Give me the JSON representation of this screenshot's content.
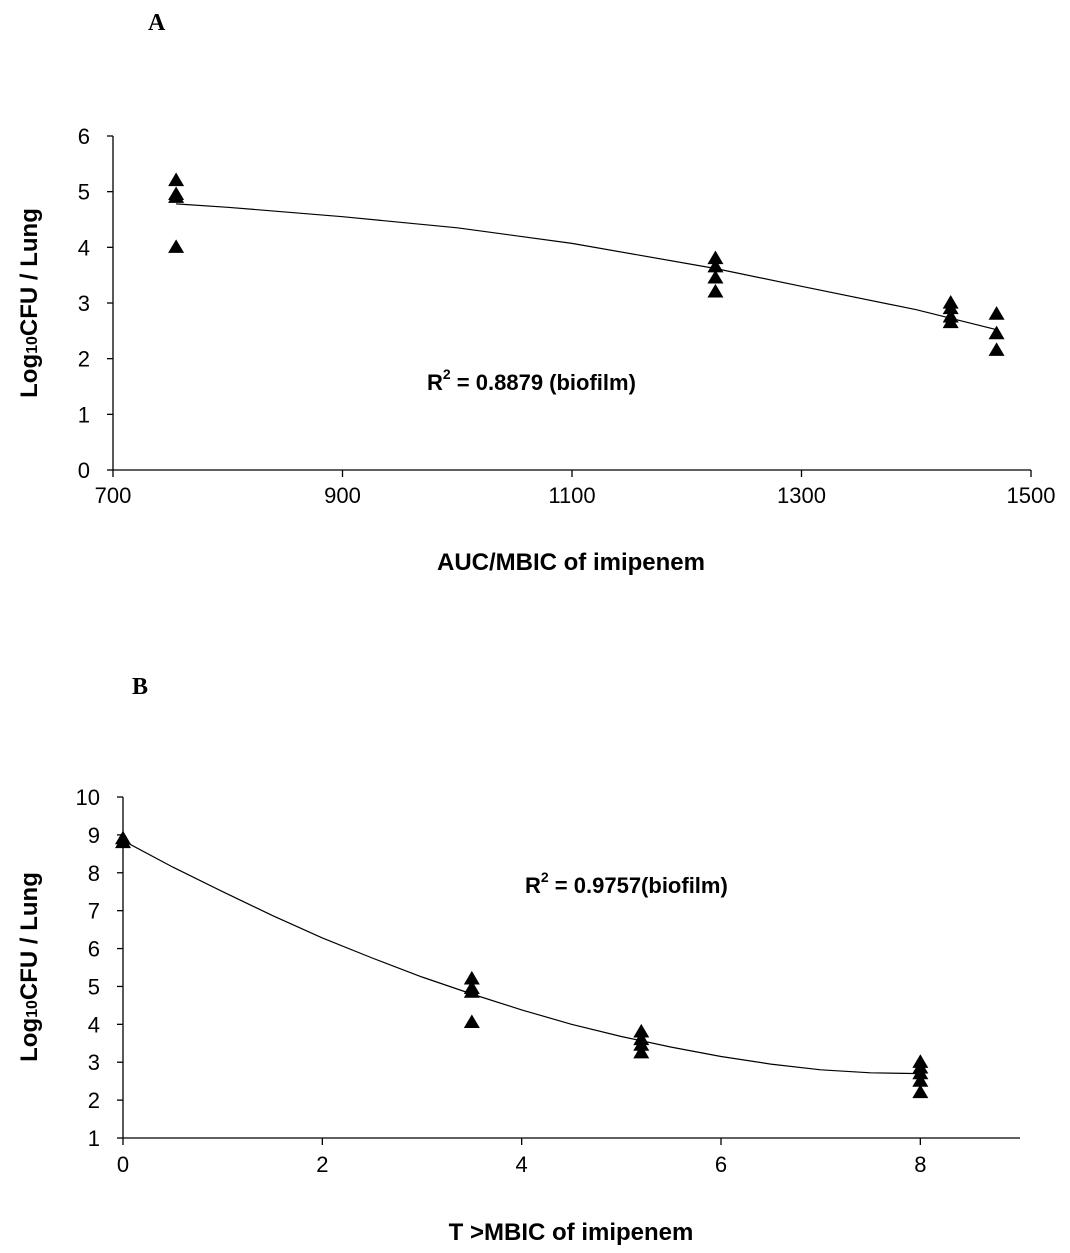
{
  "chart_data": [
    {
      "type": "scatter",
      "panel": "A",
      "xlabel": "AUC/MBIC of imipenem",
      "ylabel_main": "Log",
      "ylabel_sub": "10",
      "ylabel_rest": "CFU / Lung",
      "xlim": [
        700,
        1500
      ],
      "ylim": [
        0,
        6
      ],
      "xticks": [
        700,
        900,
        1100,
        1300,
        1500
      ],
      "yticks": [
        0,
        1,
        2,
        3,
        4,
        5,
        6
      ],
      "annotation_prefix": "R",
      "annotation_sup": "2",
      "annotation_rest": " = 0.8879 (biofilm)",
      "marker": "triangle",
      "points": [
        {
          "x": 755,
          "y": 5.2
        },
        {
          "x": 755,
          "y": 4.95
        },
        {
          "x": 755,
          "y": 4.9
        },
        {
          "x": 755,
          "y": 4.0
        },
        {
          "x": 1225,
          "y": 3.8
        },
        {
          "x": 1225,
          "y": 3.65
        },
        {
          "x": 1225,
          "y": 3.45
        },
        {
          "x": 1225,
          "y": 3.2
        },
        {
          "x": 1430,
          "y": 3.0
        },
        {
          "x": 1430,
          "y": 2.9
        },
        {
          "x": 1430,
          "y": 2.75
        },
        {
          "x": 1430,
          "y": 2.65
        },
        {
          "x": 1470,
          "y": 2.8
        },
        {
          "x": 1470,
          "y": 2.45
        },
        {
          "x": 1470,
          "y": 2.15
        }
      ],
      "trendline": [
        {
          "x": 755,
          "y": 4.78
        },
        {
          "x": 800,
          "y": 4.72
        },
        {
          "x": 900,
          "y": 4.55
        },
        {
          "x": 1000,
          "y": 4.35
        },
        {
          "x": 1100,
          "y": 4.07
        },
        {
          "x": 1225,
          "y": 3.62
        },
        {
          "x": 1300,
          "y": 3.3
        },
        {
          "x": 1400,
          "y": 2.88
        },
        {
          "x": 1470,
          "y": 2.52
        }
      ]
    },
    {
      "type": "scatter",
      "panel": "B",
      "xlabel": "T >MBIC of imipenem",
      "ylabel_main": "Log",
      "ylabel_sub": "10",
      "ylabel_rest": "CFU / Lung",
      "xlim": [
        0,
        9
      ],
      "ylim": [
        1,
        10
      ],
      "xticks": [
        0,
        2,
        4,
        6,
        8
      ],
      "yticks": [
        1,
        2,
        3,
        4,
        5,
        6,
        7,
        8,
        9,
        10
      ],
      "annotation_prefix": "R",
      "annotation_sup": "2",
      "annotation_rest": " = 0.9757(biofilm)",
      "marker": "triangle",
      "points": [
        {
          "x": 0,
          "y": 8.9
        },
        {
          "x": 0,
          "y": 8.8
        },
        {
          "x": 3.5,
          "y": 5.2
        },
        {
          "x": 3.5,
          "y": 4.95
        },
        {
          "x": 3.5,
          "y": 4.85
        },
        {
          "x": 3.5,
          "y": 4.05
        },
        {
          "x": 5.2,
          "y": 3.8
        },
        {
          "x": 5.2,
          "y": 3.6
        },
        {
          "x": 5.2,
          "y": 3.45
        },
        {
          "x": 5.2,
          "y": 3.25
        },
        {
          "x": 8,
          "y": 3.0
        },
        {
          "x": 8,
          "y": 2.85
        },
        {
          "x": 8,
          "y": 2.7
        },
        {
          "x": 8,
          "y": 2.5
        },
        {
          "x": 8,
          "y": 2.2
        }
      ],
      "trendline": [
        {
          "x": 0,
          "y": 8.85
        },
        {
          "x": 0.5,
          "y": 8.15
        },
        {
          "x": 1,
          "y": 7.5
        },
        {
          "x": 1.5,
          "y": 6.87
        },
        {
          "x": 2,
          "y": 6.28
        },
        {
          "x": 2.5,
          "y": 5.75
        },
        {
          "x": 3,
          "y": 5.25
        },
        {
          "x": 3.5,
          "y": 4.8
        },
        {
          "x": 4,
          "y": 4.38
        },
        {
          "x": 4.5,
          "y": 4.0
        },
        {
          "x": 5,
          "y": 3.68
        },
        {
          "x": 5.5,
          "y": 3.4
        },
        {
          "x": 6,
          "y": 3.15
        },
        {
          "x": 6.5,
          "y": 2.95
        },
        {
          "x": 7,
          "y": 2.8
        },
        {
          "x": 7.5,
          "y": 2.72
        },
        {
          "x": 8,
          "y": 2.7
        }
      ]
    }
  ]
}
